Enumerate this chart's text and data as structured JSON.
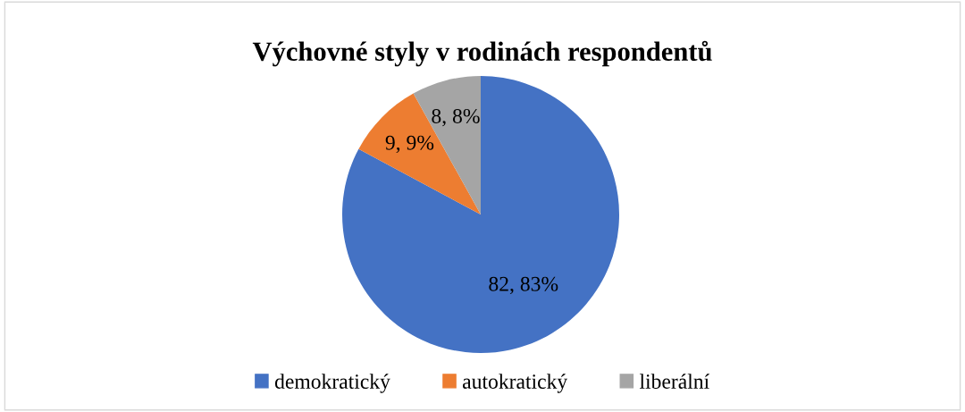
{
  "chart_data": {
    "type": "pie",
    "title": "Výchovné styly v rodinách respondentů",
    "categories": [
      "demokratický",
      "autokratický",
      "liberální"
    ],
    "values": [
      82,
      9,
      8
    ],
    "colors": [
      "#4472c4",
      "#ed7d31",
      "#a5a5a5"
    ],
    "value_labels": [
      "82, 83%",
      "9, 9%",
      "8, 8%"
    ],
    "legend": "bottom"
  }
}
